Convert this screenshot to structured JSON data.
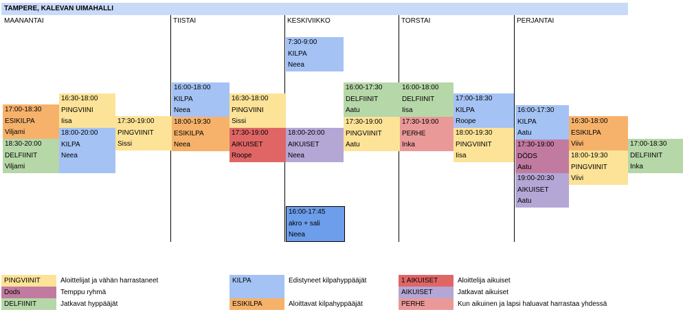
{
  "title": "TAMPERE, KALEVAN UIMAHALLI",
  "days": [
    "MAANANTAI",
    "TIISTAI",
    "KESKIVIIKKO",
    "TORSTAI",
    "PERJANTAI"
  ],
  "colors": {
    "title": "#c9daf8",
    "PINGVIINIT": "#fde397",
    "KILPA": "#a4c2f4",
    "ESIKILPA": "#f6b26b",
    "DELFIINIT": "#b6d7a8",
    "AIKUISET": "#b4a7d6",
    "AIKUISET1": "#e06666",
    "DODS": "#c27ba0",
    "PERHE": "#ea9999",
    "AKRO": "#6d9eeb"
  },
  "sessions": [
    {
      "time": "17:00-18:30",
      "group": "ESIKILPA",
      "coach": "Viljami",
      "color": "#f6b26b"
    },
    {
      "time": "18:30-20:00",
      "group": "DELFIINIT",
      "coach": "Viljami",
      "color": "#b6d7a8"
    },
    {
      "time": "16:30-18:00",
      "group": "PINGVIINI",
      "coach": "Iisa",
      "color": "#fde397"
    },
    {
      "time": "18:00-20:00",
      "group": "KILPA",
      "coach": "Neea",
      "color": "#a4c2f4"
    },
    {
      "time": "17:30-19:00",
      "group": "PINGVIINIT",
      "coach": "Sissi",
      "color": "#fde397"
    },
    {
      "time": "16:00-18:00",
      "group": "KILPA",
      "coach": "Neea",
      "color": "#a4c2f4"
    },
    {
      "time": "18:00-19:30",
      "group": "ESIKILPA",
      "coach": "Neea",
      "color": "#f6b26b"
    },
    {
      "time": "16:30-18:00",
      "group": "PINGVIINI",
      "coach": "Sissi",
      "color": "#fde397"
    },
    {
      "time": "17:30-19:00",
      "group": "AIKUISET",
      "coach": "Roope",
      "color": "#e06666"
    },
    {
      "time": "7:30-9:00",
      "group": "KILPA",
      "coach": "Neea",
      "color": "#a4c2f4"
    },
    {
      "time": "18:00-20:00",
      "group": "AIKUISET",
      "coach": "Neea",
      "color": "#b4a7d6"
    },
    {
      "time": "16:00-17:45",
      "group": "akro + sali",
      "coach": "Neea",
      "color": "#6d9eeb"
    },
    {
      "time": "16:00-17:30",
      "group": "DELFIINIT",
      "coach": "Aatu",
      "color": "#b6d7a8"
    },
    {
      "time": "17:30-19:00",
      "group": "PINGVIINIT",
      "coach": "Aatu",
      "color": "#fde397"
    },
    {
      "time": "16:00-18:00",
      "group": "DELFIINIT",
      "coach": "Iisa",
      "color": "#b6d7a8"
    },
    {
      "time": "17:30-19:00",
      "group": "PERHE",
      "coach": "Inka",
      "color": "#ea9999"
    },
    {
      "time": "17:00-18:30",
      "group": "KILPA",
      "coach": "Roope",
      "color": "#a4c2f4"
    },
    {
      "time": "18:00-19:30",
      "group": "PINGVIINIT",
      "coach": "Iisa",
      "color": "#fde397"
    },
    {
      "time": "16:00-17:30",
      "group": "KILPA",
      "coach": "Aatu",
      "color": "#a4c2f4"
    },
    {
      "time": "17:30-19:00",
      "group": "DÖDS",
      "coach": "Aatu",
      "color": "#c27ba0"
    },
    {
      "time": "19:00-20:30",
      "group": "AIKUISET",
      "coach": "Aatu",
      "color": "#b4a7d6"
    },
    {
      "time": "16:30-18:00",
      "group": "ESIKILPA",
      "coach": "Viivi",
      "color": "#f6b26b"
    },
    {
      "time": "18:00-19:30",
      "group": "PINGVIINIT",
      "coach": "Viivi",
      "color": "#fde397"
    },
    {
      "time": "17:00-18:30",
      "group": "DELFIINIT",
      "coach": "Inka",
      "color": "#b6d7a8"
    }
  ],
  "legend": [
    {
      "label": "PINGVIINIT",
      "desc": "Aloittelijat ja vähän harrastaneet",
      "color": "#fde397"
    },
    {
      "label": "Dods",
      "desc": "Temppu ryhmä",
      "color": "#c27ba0"
    },
    {
      "label": "DELFIINIT",
      "desc": "Jatkavat hyppääjät",
      "color": "#b6d7a8"
    },
    {
      "label": "KILPA",
      "desc": "Edistyneet kilpahyppääjät",
      "color": "#a4c2f4"
    },
    {
      "label": "ESIKILPA",
      "desc": "Aloittavat kilpahyppääjät",
      "color": "#f6b26b"
    },
    {
      "label": "1 AIKUISET",
      "desc": "Aloittelija aikuiset",
      "color": "#e06666"
    },
    {
      "label": "AIKUISET",
      "desc": "Jatkavat aikuiset",
      "color": "#b4a7d6"
    },
    {
      "label": "PERHE",
      "desc": "Kun aikuinen ja lapsi haluavat harrastaa yhdessä",
      "color": "#ea9999"
    }
  ]
}
